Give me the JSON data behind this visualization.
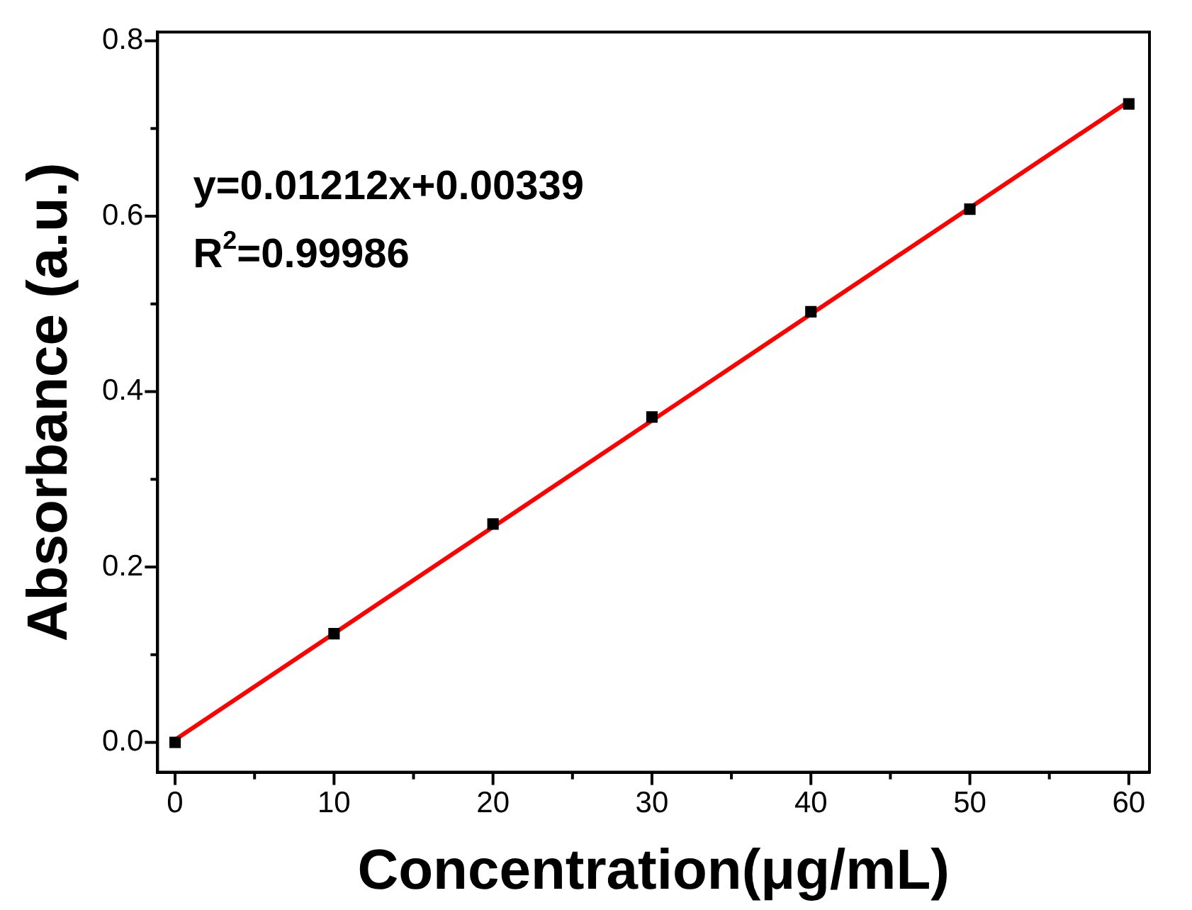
{
  "chart_data": {
    "type": "scatter",
    "xlabel": "Concentration(μg/mL)",
    "ylabel": "Absorbance (a.u.)",
    "xlim": [
      -1.1,
      61.3
    ],
    "ylim": [
      -0.034,
      0.81
    ],
    "xticks": [
      0,
      {
        "value": 5,
        "label": null
      },
      10,
      {
        "value": 15,
        "label": null
      },
      20,
      {
        "value": 25,
        "label": null
      },
      30,
      {
        "value": 35,
        "label": null
      },
      40,
      {
        "value": 45,
        "label": null
      },
      50,
      {
        "value": 55,
        "label": null
      },
      60
    ],
    "yticks": [
      {
        "value": 0,
        "label": "0.0"
      },
      {
        "value": 0.1,
        "label": null
      },
      {
        "value": 0.2,
        "label": "0.2"
      },
      {
        "value": 0.3,
        "label": null
      },
      {
        "value": 0.4,
        "label": "0.4"
      },
      {
        "value": 0.5,
        "label": null
      },
      {
        "value": 0.6,
        "label": "0.6"
      },
      {
        "value": 0.7,
        "label": null
      },
      {
        "value": 0.8,
        "label": "0.8"
      }
    ],
    "grid": false,
    "legend": false,
    "x": [
      0,
      10,
      20,
      30,
      40,
      50,
      60
    ],
    "series": [
      {
        "marker": "square",
        "color": "#000000",
        "values": [
          0.0,
          0.124,
          0.249,
          0.371,
          0.491,
          0.608,
          0.728
        ]
      },
      {
        "type": "line",
        "marker": "none",
        "color": "#ff0000",
        "x": [
          0,
          60
        ],
        "values": [
          0.003,
          0.731
        ]
      }
    ],
    "annotations": [
      "y=0.01212x+0.00339",
      "R$^{2}$=0.99986"
    ]
  }
}
